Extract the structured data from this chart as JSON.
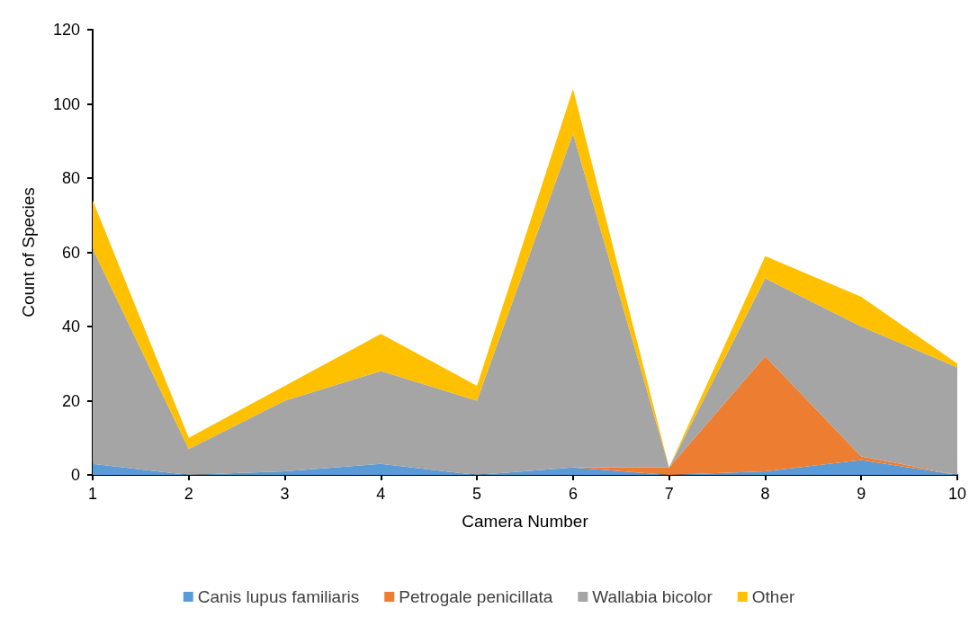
{
  "chart_data": {
    "type": "area",
    "stacked": true,
    "xlabel": "Camera Number",
    "ylabel": "Count of Species",
    "categories": [
      "1",
      "2",
      "3",
      "4",
      "5",
      "6",
      "7",
      "8",
      "9",
      "10"
    ],
    "series": [
      {
        "name": "Canis lupus familiaris",
        "color": "#5b9bd5",
        "values": [
          3,
          0,
          1,
          3,
          0,
          2,
          0,
          1,
          4,
          0
        ]
      },
      {
        "name": "Petrogale penicillata",
        "color": "#ed7d31",
        "values": [
          0,
          0,
          0,
          0,
          0,
          0,
          2,
          31,
          1,
          0
        ]
      },
      {
        "name": "Wallabia bicolor",
        "color": "#a5a5a5",
        "values": [
          58,
          7,
          19,
          25,
          20,
          90,
          0,
          21,
          35,
          29
        ]
      },
      {
        "name": "Other",
        "color": "#ffc000",
        "values": [
          13,
          3,
          4,
          10,
          4,
          12,
          0,
          6,
          8,
          1
        ]
      }
    ],
    "ylim": [
      0,
      120
    ],
    "yticks": [
      0,
      20,
      40,
      60,
      80,
      100,
      120
    ],
    "grid": false,
    "legend": "bottom"
  }
}
